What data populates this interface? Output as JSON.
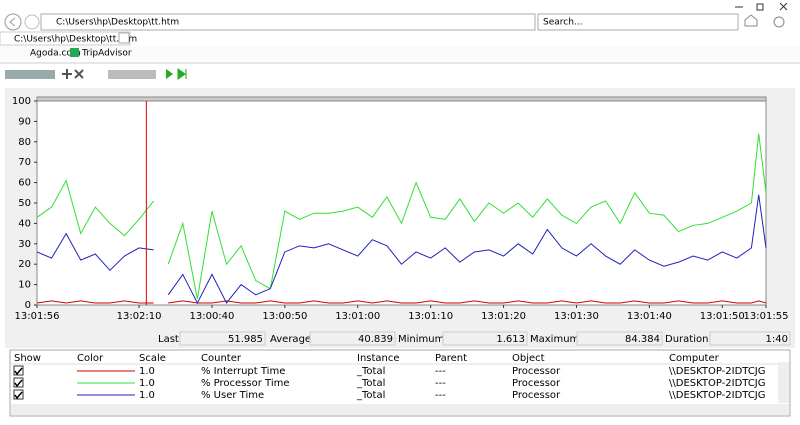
{
  "browser": {
    "address": "C:\\Users\\hp\\Desktop\\tt.htm",
    "search": "Search...",
    "tab": "C:\\Users\\hp\\Desktop\\tt.htm",
    "favorites": [
      "Agoda.com",
      "TripAdvisor"
    ]
  },
  "chart_data": {
    "type": "line",
    "x": [
      0,
      2,
      4,
      6,
      8,
      10,
      12,
      14,
      16,
      17,
      18,
      20,
      22,
      24,
      26,
      28,
      30,
      32,
      34,
      36,
      38,
      40,
      42,
      44,
      46,
      48,
      50,
      52,
      54,
      56,
      58,
      60,
      62,
      64,
      66,
      68,
      70,
      72,
      74,
      76,
      78,
      80,
      82,
      84,
      86,
      88,
      90,
      92,
      94,
      96,
      98,
      99,
      100
    ],
    "series": [
      {
        "name": "% Interrupt Time",
        "color": "#d00000",
        "values": [
          1,
          2,
          1,
          2,
          1,
          1,
          2,
          1,
          1,
          null,
          1,
          2,
          1,
          1,
          2,
          1,
          1,
          2,
          1,
          1,
          2,
          1,
          1,
          2,
          1,
          2,
          1,
          1,
          2,
          1,
          1,
          2,
          1,
          1,
          2,
          1,
          1,
          2,
          1,
          2,
          1,
          1,
          2,
          1,
          1,
          2,
          1,
          1,
          2,
          1,
          1,
          2,
          1
        ]
      },
      {
        "name": "% Processor Time",
        "color": "#30e030",
        "values": [
          43,
          48,
          61,
          35,
          48,
          40,
          34,
          42,
          51,
          null,
          20,
          40,
          3,
          46,
          20,
          29,
          12,
          8,
          46,
          42,
          45,
          45,
          46,
          48,
          43,
          53,
          40,
          60,
          43,
          42,
          52,
          41,
          50,
          45,
          50,
          43,
          52,
          44,
          40,
          48,
          51,
          40,
          55,
          45,
          44,
          36,
          39,
          40,
          43,
          46,
          50,
          84,
          55
        ]
      },
      {
        "name": "% User Time",
        "color": "#2020c0",
        "values": [
          26,
          23,
          35,
          22,
          25,
          17,
          24,
          28,
          27,
          null,
          5,
          15,
          1,
          15,
          1,
          10,
          5,
          8,
          26,
          29,
          28,
          30,
          27,
          24,
          32,
          29,
          20,
          26,
          23,
          28,
          21,
          26,
          27,
          24,
          30,
          25,
          37,
          28,
          24,
          30,
          24,
          20,
          27,
          22,
          19,
          21,
          24,
          22,
          26,
          23,
          28,
          54,
          28
        ]
      }
    ],
    "xlim": [
      0,
      100
    ],
    "ylim": [
      0,
      100
    ],
    "yticks": [
      0,
      10,
      20,
      30,
      40,
      50,
      60,
      70,
      80,
      90,
      100
    ],
    "xticks": [
      {
        "value": 0,
        "label": "13:01:56"
      },
      {
        "value": 14,
        "label": "13:02:10"
      },
      {
        "value": 24,
        "label": "13:00:40"
      },
      {
        "value": 34,
        "label": "13:00:50"
      },
      {
        "value": 44,
        "label": "13:01:00"
      },
      {
        "value": 54,
        "label": "13:01:10"
      },
      {
        "value": 64,
        "label": "13:01:20"
      },
      {
        "value": 74,
        "label": "13:01:30"
      },
      {
        "value": 84,
        "label": "13:01:40"
      },
      {
        "value": 94,
        "label": "13:01:50"
      },
      {
        "value": 100,
        "label": "13:01:55"
      }
    ],
    "time_marker": 15,
    "marker_color": "#e00000",
    "grid": false
  },
  "stats": {
    "labels": [
      "Last",
      "Average",
      "Minimum",
      "Maximum",
      "Duration"
    ],
    "values": [
      "51.985",
      "40.839",
      "1.613",
      "84.384",
      "1:40"
    ]
  },
  "counters": {
    "columns": [
      "Show",
      "Color",
      "Scale",
      "Counter",
      "Instance",
      "Parent",
      "Object",
      "Computer"
    ],
    "rows": [
      [
        "1.0",
        "_Total",
        "---",
        "Processor",
        "\\\\DESKTOP-2IDTCJG"
      ],
      [
        "1.0",
        "_Total",
        "---",
        "Processor",
        "\\\\DESKTOP-2IDTCJG"
      ],
      [
        "1.0",
        "_Total",
        "---",
        "Processor",
        "\\\\DESKTOP-2IDTCJG"
      ]
    ]
  }
}
